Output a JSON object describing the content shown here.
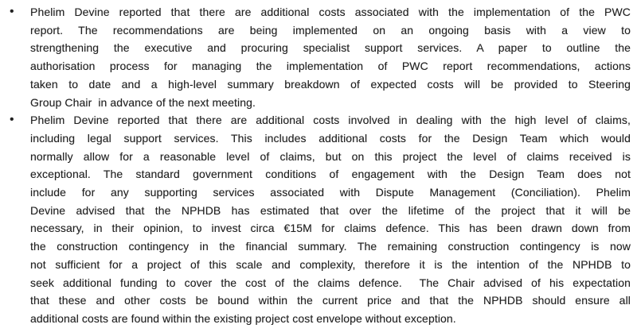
{
  "page": {
    "background": "#ffffff",
    "text_color": "#222222",
    "bullet_char": "•"
  },
  "document": {
    "bullets": [
      {
        "lines": [
          "Phelim Devine reported that there are additional costs associated with the implementation of the PWC",
          "report.  The  recommendations  are  being  implemented  on  an  ongoing  basis  with  a  view  to",
          "strengthening the executive and procuring specialist support services. A paper to outline the",
          "authorisation process for managing the implementation of PWC report recommendations, actions",
          "taken to date and a high-level summary breakdown of expected costs will be provided to Steering",
          "Group Chair  in advance of the next meeting."
        ]
      },
      {
        "lines": [
          "Phelim Devine reported that there are additional costs involved in dealing with the high level of claims,",
          "including legal support services. This includes additional costs for the Design Team which would",
          "normally allow for a reasonable level of claims, but on this project the level of claims received is",
          "exceptional. The standard government conditions of engagement with the Design Team does not",
          "include for any supporting services associated with Dispute Management (Conciliation). Phelim",
          "Devine advised that the NPHDB has estimated that over the lifetime of the project that it will be",
          "necessary, in their opinion, to invest circa €15M for claims defence. This has been drawn down from",
          "the construction contingency in the financial summary. The remaining construction contingency is now",
          "not sufficient for a project of this scale and complexity, therefore it is the intention of the NPHDB to",
          "seek additional funding to cover the cost of the claims defence.  The Chair advised of his expectation",
          "that these and other costs be bound within the current price and that the NPHDB should ensure all",
          "additional costs are found within the existing project cost envelope without exception."
        ]
      }
    ]
  }
}
